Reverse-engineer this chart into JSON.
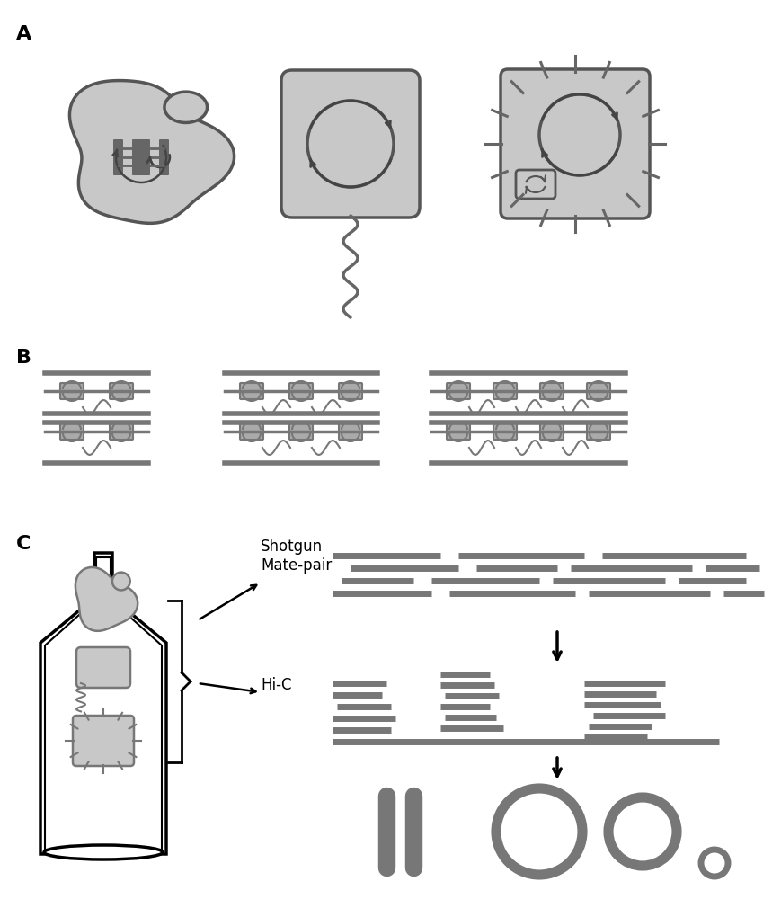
{
  "bg_color": "#ffffff",
  "cell_color": "#c8c8c8",
  "cell_outline": "#555555",
  "dark_gray": "#555555",
  "medium_gray": "#888888",
  "light_gray": "#c8c8c8",
  "text_color": "#000000",
  "panel_label_size": 16,
  "annotation_fontsize": 12,
  "panel_A_label": "A",
  "panel_B_label": "B",
  "panel_C_label": "C",
  "shotgun_label": "Shotgun\nMate-pair",
  "hic_label": "Hi-C"
}
